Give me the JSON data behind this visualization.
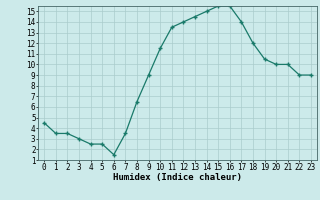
{
  "x": [
    0,
    1,
    2,
    3,
    4,
    5,
    6,
    7,
    8,
    9,
    10,
    11,
    12,
    13,
    14,
    15,
    16,
    17,
    18,
    19,
    20,
    21,
    22,
    23
  ],
  "y": [
    4.5,
    3.5,
    3.5,
    3.0,
    2.5,
    2.5,
    1.5,
    3.5,
    6.5,
    9.0,
    11.5,
    13.5,
    14.0,
    14.5,
    15.0,
    15.5,
    15.5,
    14.0,
    12.0,
    10.5,
    10.0,
    10.0,
    9.0,
    9.0
  ],
  "xlabel": "Humidex (Indice chaleur)",
  "xlim": [
    -0.5,
    23.5
  ],
  "ylim": [
    1,
    15.5
  ],
  "yticks": [
    1,
    2,
    3,
    4,
    5,
    6,
    7,
    8,
    9,
    10,
    11,
    12,
    13,
    14,
    15
  ],
  "xticks": [
    0,
    1,
    2,
    3,
    4,
    5,
    6,
    7,
    8,
    9,
    10,
    11,
    12,
    13,
    14,
    15,
    16,
    17,
    18,
    19,
    20,
    21,
    22,
    23
  ],
  "line_color": "#1a7a6a",
  "marker_color": "#1a7a6a",
  "bg_color": "#cceaea",
  "grid_color": "#aacccc",
  "label_fontsize": 6.5,
  "tick_fontsize": 5.5
}
